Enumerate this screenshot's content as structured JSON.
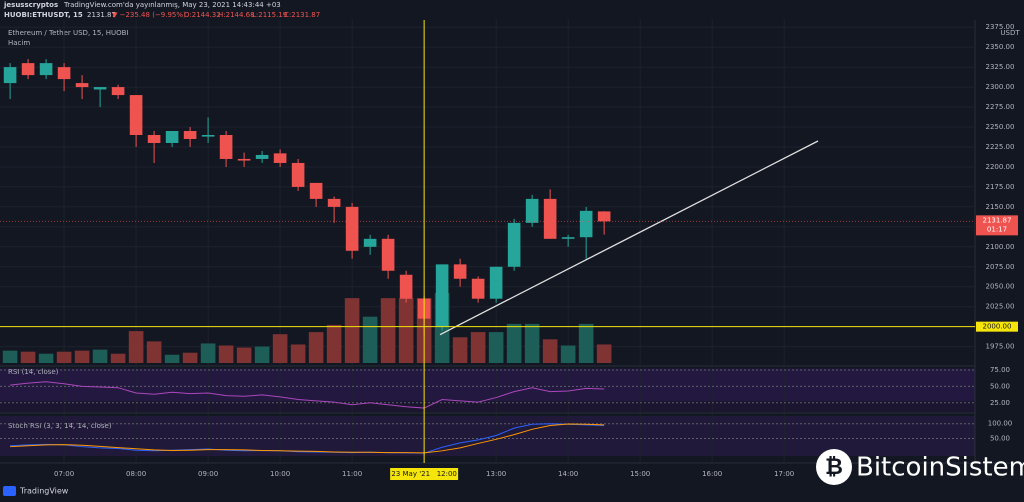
{
  "header": {
    "author": "jesusscryptos",
    "published": "TradingView.com'da yayınlanmış, May 23, 2021 14:43:44 +03",
    "symbol": "HUOBI:ETHUSDT, 15",
    "last": "2131.87",
    "change": "▼ −235.48 (−9.95%)",
    "ohlc": [
      "O:2144.32",
      "H:2144.68",
      "L:2115.19",
      "C:2131.87"
    ]
  },
  "logo": "TradingView",
  "watermark": "BitcoinSistemi",
  "chart_data": {
    "type": "candlestick",
    "title": "Ethereum / Tether USD, 15, HUOBI",
    "currency": "USDT",
    "volume_label": "Hacim",
    "x": [
      6.25,
      6.5,
      6.75,
      7,
      7.25,
      7.5,
      7.75,
      8,
      8.25,
      8.5,
      8.75,
      9,
      9.25,
      9.5,
      9.75,
      10,
      10.25,
      10.5,
      10.75,
      11,
      11.25,
      11.5,
      11.75,
      12,
      12.25,
      12.5,
      12.75,
      13,
      13.25,
      13.5,
      13.75,
      14,
      14.25,
      14.5
    ],
    "open": [
      2305,
      2330,
      2315,
      2325,
      2305,
      2297,
      2300,
      2290,
      2240,
      2230,
      2245,
      2238,
      2240,
      2210,
      2210,
      2217,
      2205,
      2180,
      2160,
      2150,
      2100,
      2110,
      2065,
      2035,
      2000,
      2078,
      2060,
      2035,
      2075,
      2130,
      2160,
      2110,
      2112,
      2144.32
    ],
    "high": [
      2330,
      2335,
      2335,
      2330,
      2315,
      2300,
      2303,
      2290,
      2245,
      2245,
      2250,
      2262,
      2245,
      2218,
      2220,
      2222,
      2210,
      2180,
      2163,
      2155,
      2115,
      2115,
      2070,
      2038,
      2078,
      2085,
      2063,
      2075,
      2135,
      2165,
      2172,
      2115,
      2150,
      2144.68
    ],
    "low": [
      2285,
      2310,
      2310,
      2295,
      2285,
      2275,
      2285,
      2225,
      2205,
      2225,
      2225,
      2230,
      2200,
      2200,
      2205,
      2200,
      2170,
      2150,
      2130,
      2085,
      2090,
      2060,
      2030,
      1990,
      1995,
      2050,
      2030,
      2030,
      2070,
      2125,
      2110,
      2100,
      2085,
      2115.19
    ],
    "close": [
      2325,
      2315,
      2330,
      2310,
      2300,
      2300,
      2290,
      2240,
      2230,
      2245,
      2235,
      2240,
      2210,
      2208,
      2215,
      2205,
      2175,
      2160,
      2150,
      2095,
      2110,
      2070,
      2035,
      2010,
      2078,
      2060,
      2035,
      2075,
      2130,
      2160,
      2110,
      2112,
      2145,
      2131.87
    ],
    "volume": [
      12,
      11,
      9,
      11,
      12,
      13,
      9,
      31,
      21,
      8,
      10,
      19,
      17,
      15,
      16,
      28,
      18,
      30,
      37,
      63,
      45,
      63,
      63,
      63,
      68,
      25,
      30,
      30,
      38,
      38,
      23,
      17,
      38,
      18
    ],
    "up_color": "#26a69a",
    "down_color": "#ef5350",
    "up_volume_color": "#1d5e58",
    "down_volume_color": "#7f3333",
    "ylim": [
      1952,
      2384
    ],
    "yticks": [
      {
        "value": 1975,
        "label": "1975.00"
      },
      {
        "value": 2000,
        "label": "2000.00"
      },
      {
        "value": 2025,
        "label": "2025.00"
      },
      {
        "value": 2050,
        "label": "2050.00"
      },
      {
        "value": 2075,
        "label": "2075.00"
      },
      {
        "value": 2100,
        "label": "2100.00"
      },
      {
        "value": 2125,
        "label": "2125.00"
      },
      {
        "value": 2150,
        "label": "2150.00"
      },
      {
        "value": 2175,
        "label": "2175.00"
      },
      {
        "value": 2200,
        "label": "2200.00"
      },
      {
        "value": 2225,
        "label": "2225.00"
      },
      {
        "value": 2250,
        "label": "2250.00"
      },
      {
        "value": 2275,
        "label": "2275.00"
      },
      {
        "value": 2300,
        "label": "2300.00"
      },
      {
        "value": 2325,
        "label": "2325.00"
      },
      {
        "value": 2350,
        "label": "2350.00"
      },
      {
        "value": 2375,
        "label": "2375.00"
      }
    ],
    "xlim": [
      6.11,
      19.65
    ],
    "xticks": [
      {
        "value": 7,
        "label": "07:00"
      },
      {
        "value": 8,
        "label": "08:00"
      },
      {
        "value": 9,
        "label": "09:00"
      },
      {
        "value": 10,
        "label": "10:00"
      },
      {
        "value": 11,
        "label": "11:00"
      },
      {
        "value": 13,
        "label": "13:00"
      },
      {
        "value": 14,
        "label": "14:00"
      },
      {
        "value": 15,
        "label": "15:00"
      },
      {
        "value": 16,
        "label": "16:00"
      },
      {
        "value": 17,
        "label": "17:00"
      }
    ],
    "last_price": {
      "value": 2131.87,
      "label": "2131.87",
      "countdown": "01:17"
    },
    "crosshair": {
      "x": 12,
      "x_label": "23 May '21   12:00",
      "y": 2000,
      "y_label": "2000.00",
      "color": "#f5e50a"
    },
    "trend_line": {
      "x": [
        12.22,
        17.47
      ],
      "y": [
        1990,
        2232.5
      ],
      "color": "#e0e0e0"
    },
    "indicators": [
      {
        "title": "RSI (14, close)",
        "ylim": [
          11,
          78
        ],
        "yticks": [
          {
            "value": 75,
            "label": "75.00"
          },
          {
            "value": 50,
            "label": "50.00"
          },
          {
            "value": 25,
            "label": "25.00"
          }
        ],
        "series": [
          {
            "color": "#ab47bc",
            "values": [
              52,
              55,
              57,
              54,
              50,
              49,
              48,
              40,
              38,
              41,
              39,
              40,
              36,
              35,
              37,
              34,
              30,
              28,
              26,
              22,
              25,
              22,
              19,
              17,
              30,
              28,
              26,
              33,
              42,
              48,
              42,
              43,
              47,
              46
            ]
          }
        ]
      },
      {
        "title": "Stoch RSI (3, 3, 14, 14, close)",
        "ylim": [
          -30,
          133
        ],
        "yticks": [
          {
            "value": 100,
            "label": "100.00"
          },
          {
            "value": 50,
            "label": "50.00"
          }
        ],
        "series": [
          {
            "color": "#2962ff",
            "values": [
              25,
              28,
              30,
              28,
              22,
              18,
              16,
              10,
              8,
              10,
              12,
              14,
              10,
              8,
              9,
              8,
              5,
              4,
              3,
              2,
              3,
              2,
              1,
              0,
              20,
              35,
              45,
              60,
              85,
              98,
              100,
              98,
              96,
              94
            ]
          },
          {
            "color": "#ff9800",
            "values": [
              22,
              25,
              28,
              29,
              27,
              23,
              19,
              15,
              11,
              9,
              10,
              12,
              12,
              11,
              9,
              8,
              7,
              6,
              4,
              3,
              3,
              2,
              2,
              1,
              8,
              18,
              33,
              47,
              63,
              81,
              94,
              99,
              98,
              96
            ]
          }
        ]
      }
    ]
  }
}
